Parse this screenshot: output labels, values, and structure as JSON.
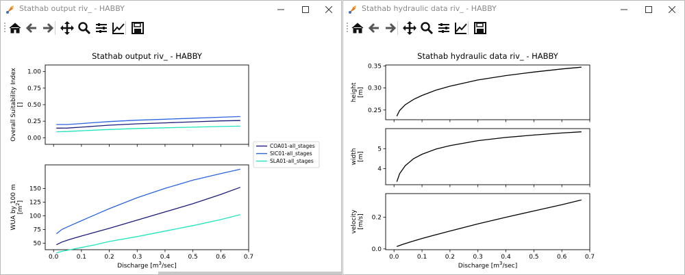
{
  "window_left": {
    "title": "Stathab output riv_ - HABBY",
    "toolbar": [
      "home-icon",
      "back-arrow-icon",
      "forward-arrow-icon",
      "pan-icon",
      "zoom-icon",
      "configure-subplots-icon",
      "edit-curves-icon",
      "save-icon"
    ],
    "chart_data": [
      {
        "type": "line",
        "title": "Stathab output riv_ - HABBY",
        "xlabel": "",
        "ylabel": "Overall Suitability Index",
        "ylabel_unit": "[]",
        "xlim": [
          -0.03,
          0.7
        ],
        "ylim": [
          -0.1,
          1.1
        ],
        "xticks": [
          "",
          "",
          "",
          "",
          "",
          "",
          "",
          ""
        ],
        "yticks": [
          "0.00",
          "0.25",
          "0.50",
          "0.75",
          "1.00"
        ],
        "ytick_values": [
          0,
          0.25,
          0.5,
          0.75,
          1.0
        ],
        "series": [
          {
            "name": "COA01-all_stages",
            "color": "#1a1a7a",
            "x": [
              0.01,
              0.05,
              0.1,
              0.15,
              0.2,
              0.3,
              0.4,
              0.5,
              0.6,
              0.67
            ],
            "y": [
              0.145,
              0.146,
              0.16,
              0.175,
              0.19,
              0.21,
              0.225,
              0.24,
              0.255,
              0.26
            ]
          },
          {
            "name": "SIC01-all_stages",
            "color": "#2a62e0",
            "x": [
              0.01,
              0.05,
              0.1,
              0.15,
              0.2,
              0.3,
              0.4,
              0.5,
              0.6,
              0.67
            ],
            "y": [
              0.2,
              0.2,
              0.215,
              0.23,
              0.245,
              0.265,
              0.28,
              0.295,
              0.31,
              0.32
            ]
          },
          {
            "name": "SLA01-all_stages",
            "color": "#1de5c0",
            "x": [
              0.01,
              0.05,
              0.1,
              0.15,
              0.2,
              0.3,
              0.4,
              0.5,
              0.6,
              0.67
            ],
            "y": [
              0.09,
              0.095,
              0.105,
              0.115,
              0.125,
              0.14,
              0.15,
              0.16,
              0.17,
              0.175
            ]
          }
        ]
      },
      {
        "type": "line",
        "title": "",
        "xlabel": "Discharge [m³/sec]",
        "ylabel": "WUA by 100 m",
        "ylabel_unit": "[m²]",
        "xlim": [
          -0.03,
          0.7
        ],
        "ylim": [
          38,
          193
        ],
        "xticks": [
          "0.0",
          "0.1",
          "0.2",
          "0.3",
          "0.4",
          "0.5",
          "0.6",
          "0.7"
        ],
        "xtick_values": [
          0,
          0.1,
          0.2,
          0.3,
          0.4,
          0.5,
          0.6,
          0.7
        ],
        "yticks": [
          "50",
          "75",
          "100",
          "125",
          "150"
        ],
        "ytick_values": [
          50,
          75,
          100,
          125,
          150
        ],
        "series": [
          {
            "name": "COA01-all_stages",
            "color": "#1a1a7a",
            "x": [
              0.01,
              0.03,
              0.06,
              0.1,
              0.15,
              0.2,
              0.3,
              0.4,
              0.5,
              0.6,
              0.67
            ],
            "y": [
              47,
              52,
              57,
              63,
              70,
              77,
              92,
              107,
              122,
              139,
              152
            ]
          },
          {
            "name": "SIC01-all_stages",
            "color": "#2a62e0",
            "x": [
              0.01,
              0.03,
              0.06,
              0.1,
              0.15,
              0.2,
              0.3,
              0.4,
              0.5,
              0.6,
              0.67
            ],
            "y": [
              67,
              75,
              82,
              91,
              102,
              113,
              133,
              150,
              165,
              177,
              185
            ]
          },
          {
            "name": "SLA01-all_stages",
            "color": "#1de5c0",
            "x": [
              0.01,
              0.03,
              0.06,
              0.1,
              0.15,
              0.2,
              0.3,
              0.4,
              0.5,
              0.6,
              0.67
            ],
            "y": [
              32,
              35,
              38,
              42,
              47,
              53,
              62,
              72,
              82,
              93,
              102
            ]
          }
        ]
      }
    ],
    "legend": [
      "COA01-all_stages",
      "SIC01-all_stages",
      "SLA01-all_stages"
    ]
  },
  "window_right": {
    "title": "Stathab hydraulic data riv_ - HABBY",
    "toolbar": [
      "home-icon",
      "back-arrow-icon",
      "forward-arrow-icon",
      "pan-icon",
      "zoom-icon",
      "configure-subplots-icon",
      "edit-curves-icon",
      "save-icon"
    ],
    "chart_data": [
      {
        "type": "line",
        "title": "Stathab hydraulic data riv_ - HABBY",
        "xlabel": "",
        "ylabel": "height",
        "ylabel_unit": "[m]",
        "xlim": [
          -0.03,
          0.7
        ],
        "ylim": [
          0.228,
          0.352
        ],
        "xticks": [
          "",
          "",
          "",
          "",
          "",
          "",
          "",
          ""
        ],
        "yticks": [
          "0.25",
          "0.30",
          "0.35"
        ],
        "ytick_values": [
          0.25,
          0.3,
          0.35
        ],
        "series": [
          {
            "name": "",
            "color": "#000000",
            "x": [
              0.01,
              0.02,
              0.04,
              0.07,
              0.1,
              0.15,
              0.2,
              0.3,
              0.4,
              0.5,
              0.6,
              0.67
            ],
            "y": [
              0.236,
              0.249,
              0.262,
              0.274,
              0.283,
              0.295,
              0.304,
              0.318,
              0.328,
              0.336,
              0.343,
              0.347
            ]
          }
        ]
      },
      {
        "type": "line",
        "title": "",
        "xlabel": "",
        "ylabel": "width",
        "ylabel_unit": "[m]",
        "xlim": [
          -0.03,
          0.7
        ],
        "ylim": [
          3.2,
          6.0
        ],
        "xticks": [
          "",
          "",
          "",
          "",
          "",
          "",
          "",
          ""
        ],
        "yticks": [
          "4",
          "5"
        ],
        "ytick_values": [
          4,
          5
        ],
        "series": [
          {
            "name": "",
            "color": "#000000",
            "x": [
              0.01,
              0.02,
              0.04,
              0.07,
              0.1,
              0.15,
              0.2,
              0.3,
              0.4,
              0.5,
              0.6,
              0.67
            ],
            "y": [
              3.35,
              3.75,
              4.15,
              4.5,
              4.72,
              4.98,
              5.15,
              5.4,
              5.56,
              5.68,
              5.78,
              5.84
            ]
          }
        ]
      },
      {
        "type": "line",
        "title": "",
        "xlabel": "Discharge [m³/sec]",
        "ylabel": "velocity",
        "ylabel_unit": "[m/s]",
        "xlim": [
          -0.03,
          0.7
        ],
        "ylim": [
          -0.005,
          0.35
        ],
        "xticks": [
          "0.0",
          "0.1",
          "0.2",
          "0.3",
          "0.4",
          "0.5",
          "0.6",
          "0.7"
        ],
        "xtick_values": [
          0,
          0.1,
          0.2,
          0.3,
          0.4,
          0.5,
          0.6,
          0.7
        ],
        "yticks": [
          "0.0",
          "0.2"
        ],
        "ytick_values": [
          0,
          0.2
        ],
        "series": [
          {
            "name": "",
            "color": "#000000",
            "x": [
              0.01,
              0.03,
              0.06,
              0.1,
              0.15,
              0.2,
              0.3,
              0.4,
              0.5,
              0.6,
              0.67
            ],
            "y": [
              0.015,
              0.028,
              0.045,
              0.066,
              0.09,
              0.113,
              0.158,
              0.2,
              0.24,
              0.28,
              0.31
            ]
          }
        ]
      }
    ]
  }
}
